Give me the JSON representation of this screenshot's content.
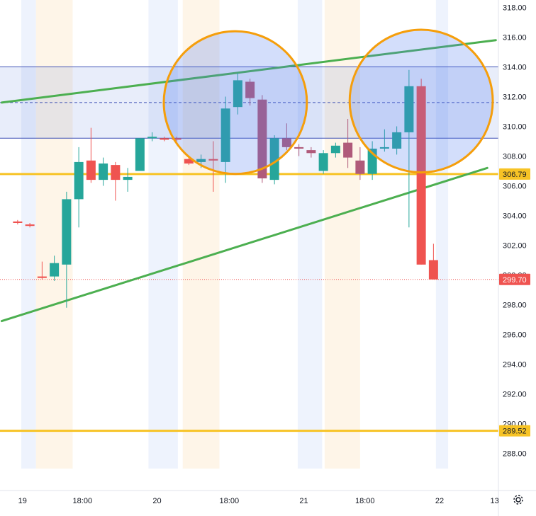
{
  "chart_data": {
    "type": "candlestick",
    "title": "",
    "xlabel": "",
    "ylabel": "",
    "ylim": [
      287,
      318.5
    ],
    "grid": false,
    "y_ticks": [
      "318.00",
      "316.00",
      "314.00",
      "312.00",
      "310.00",
      "308.00",
      "306.00",
      "304.00",
      "302.00",
      "300.00",
      "298.00",
      "296.00",
      "294.00",
      "292.00",
      "290.00",
      "288.00"
    ],
    "x_ticks": [
      "19",
      "18:00",
      "20",
      "18:00",
      "21",
      "18:00",
      "22",
      "13"
    ],
    "session_bands": [
      {
        "start": -0.2,
        "end": 1.0,
        "kind": "pre"
      },
      {
        "start": 1.0,
        "end": 4.0,
        "kind": "post"
      },
      {
        "start": 10.2,
        "end": 12.6,
        "kind": "pre"
      },
      {
        "start": 13.0,
        "end": 16.0,
        "kind": "post"
      },
      {
        "start": 22.4,
        "end": 24.4,
        "kind": "pre"
      },
      {
        "start": 24.6,
        "end": 27.5,
        "kind": "post"
      },
      {
        "start": 33.7,
        "end": 34.7,
        "kind": "pre"
      }
    ],
    "candles": [
      {
        "i": -0.5,
        "o": 303.6,
        "h": 303.7,
        "l": 303.4,
        "c": 303.5
      },
      {
        "i": 0.5,
        "o": 303.4,
        "h": 303.5,
        "l": 303.2,
        "c": 303.3
      },
      {
        "i": 1.5,
        "o": 299.9,
        "h": 300.9,
        "l": 299.7,
        "c": 299.8
      },
      {
        "i": 2.5,
        "o": 299.9,
        "h": 301.3,
        "l": 299.6,
        "c": 300.8
      },
      {
        "i": 3.5,
        "o": 300.7,
        "h": 305.6,
        "l": 297.8,
        "c": 305.1
      },
      {
        "i": 4.5,
        "o": 305.1,
        "h": 308.6,
        "l": 303.2,
        "c": 307.6
      },
      {
        "i": 5.5,
        "o": 307.7,
        "h": 309.9,
        "l": 306.2,
        "c": 306.4
      },
      {
        "i": 6.5,
        "o": 306.4,
        "h": 307.9,
        "l": 306.0,
        "c": 307.5
      },
      {
        "i": 7.5,
        "o": 307.4,
        "h": 307.6,
        "l": 305.0,
        "c": 306.4
      },
      {
        "i": 8.5,
        "o": 306.4,
        "h": 307.2,
        "l": 305.6,
        "c": 306.6
      },
      {
        "i": 9.5,
        "o": 307.0,
        "h": 309.2,
        "l": 307.0,
        "c": 309.2
      },
      {
        "i": 10.5,
        "o": 309.2,
        "h": 309.6,
        "l": 309.0,
        "c": 309.3
      },
      {
        "i": 11.5,
        "o": 309.2,
        "h": 309.3,
        "l": 309.0,
        "c": 309.1
      },
      {
        "i": 12.5,
        "o": 309.2,
        "h": 309.3,
        "l": 309.0,
        "c": 309.1
      },
      {
        "i": 13.5,
        "o": 307.8,
        "h": 308.0,
        "l": 307.4,
        "c": 307.5
      },
      {
        "i": 14.5,
        "o": 307.6,
        "h": 308.1,
        "l": 307.2,
        "c": 307.8
      },
      {
        "i": 15.5,
        "o": 307.8,
        "h": 309.0,
        "l": 305.6,
        "c": 307.7
      },
      {
        "i": 16.5,
        "o": 307.6,
        "h": 312.0,
        "l": 306.2,
        "c": 311.2
      },
      {
        "i": 17.5,
        "o": 311.3,
        "h": 313.6,
        "l": 310.8,
        "c": 313.1
      },
      {
        "i": 18.5,
        "o": 313.0,
        "h": 313.2,
        "l": 311.4,
        "c": 311.9
      },
      {
        "i": 19.5,
        "o": 311.8,
        "h": 312.1,
        "l": 306.2,
        "c": 306.5
      },
      {
        "i": 20.5,
        "o": 306.4,
        "h": 309.4,
        "l": 306.1,
        "c": 309.2
      },
      {
        "i": 21.5,
        "o": 309.2,
        "h": 310.2,
        "l": 308.4,
        "c": 308.6
      },
      {
        "i": 22.5,
        "o": 308.6,
        "h": 308.8,
        "l": 308.0,
        "c": 308.5
      },
      {
        "i": 23.5,
        "o": 308.4,
        "h": 308.6,
        "l": 307.9,
        "c": 308.2
      },
      {
        "i": 24.5,
        "o": 307.0,
        "h": 308.4,
        "l": 306.8,
        "c": 308.2
      },
      {
        "i": 25.5,
        "o": 308.2,
        "h": 308.9,
        "l": 307.9,
        "c": 308.7
      },
      {
        "i": 26.5,
        "o": 308.9,
        "h": 310.5,
        "l": 307.2,
        "c": 307.9
      },
      {
        "i": 27.5,
        "o": 307.7,
        "h": 308.6,
        "l": 306.4,
        "c": 306.8
      },
      {
        "i": 28.5,
        "o": 306.8,
        "h": 309.0,
        "l": 306.4,
        "c": 308.5
      },
      {
        "i": 29.5,
        "o": 308.5,
        "h": 309.8,
        "l": 308.3,
        "c": 308.6
      },
      {
        "i": 30.5,
        "o": 308.5,
        "h": 310.0,
        "l": 308.1,
        "c": 309.6
      },
      {
        "i": 31.5,
        "o": 309.6,
        "h": 313.8,
        "l": 303.2,
        "c": 312.7
      },
      {
        "i": 32.5,
        "o": 312.7,
        "h": 313.2,
        "l": 300.7,
        "c": 300.7
      },
      {
        "i": 33.5,
        "o": 301.0,
        "h": 302.1,
        "l": 299.7,
        "c": 299.7
      }
    ],
    "horizontal_levels": [
      {
        "price": 306.79,
        "label": "306.79",
        "color": "#f7c325"
      },
      {
        "price": 289.52,
        "label": "289.52",
        "color": "#f7c325"
      },
      {
        "price": 299.7,
        "label": "299.70",
        "color": "#ef5350"
      }
    ],
    "zone": {
      "top": 314.0,
      "bottom": 309.2,
      "mid": 311.6
    },
    "trendlines": [
      {
        "from": {
          "i": -1.8,
          "p": 311.6
        },
        "to": {
          "i": 38.6,
          "p": 315.8
        }
      },
      {
        "from": {
          "i": -1.8,
          "p": 296.9
        },
        "to": {
          "i": 37.9,
          "p": 307.2
        }
      }
    ],
    "circles": [
      {
        "i": 17.3,
        "p": 311.6,
        "rx_bars": 5.85,
        "ry_price": 4.8
      },
      {
        "i": 32.5,
        "p": 311.7,
        "rx_bars": 5.85,
        "ry_price": 4.8
      }
    ],
    "colors": {
      "up": "#26a69a",
      "down": "#ef5350",
      "down_dim": "#b05a7a",
      "trend": "#4caf50",
      "level": "#f7c325",
      "zone_line": "#3f51b5",
      "circle": "#f59e0b",
      "band_pre": "#eef3fd",
      "band_post": "#fef5e8"
    },
    "gear_icon": "gear-icon"
  }
}
